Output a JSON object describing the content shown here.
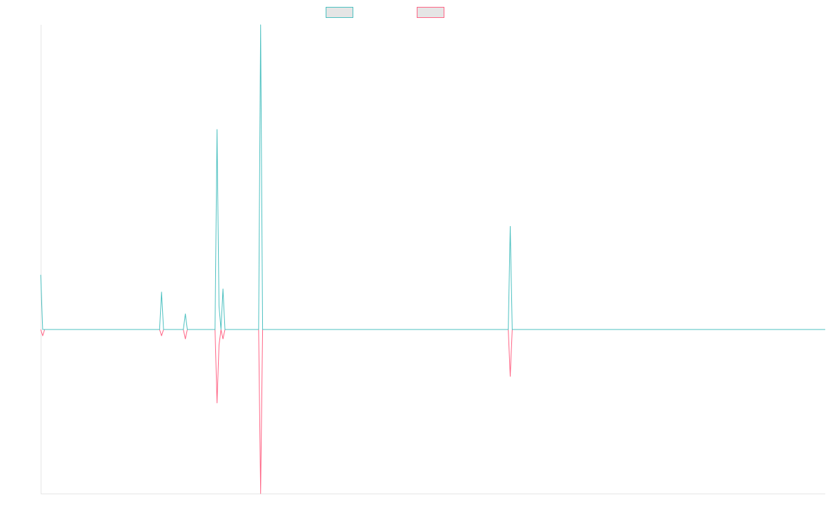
{
  "chart_data": {
    "type": "line",
    "title": "",
    "xlabel": "",
    "ylabel": "",
    "grid": false,
    "legend_position": "top-center",
    "colors": {
      "positive": "#4bc0c0",
      "negative": "#ff6384",
      "axis": "#e5e5e5",
      "legend_fill": "#e5e5e5"
    },
    "x_count": 397,
    "ylim": [
      -105,
      195
    ],
    "series": [
      {
        "color": "#4bc0c0",
        "fill": "#e5e5e5",
        "spikes": [
          [
            0,
            35
          ],
          [
            1,
            0
          ],
          [
            60,
            0
          ],
          [
            61,
            24
          ],
          [
            62,
            0
          ],
          [
            72,
            0
          ],
          [
            73,
            10
          ],
          [
            74,
            0
          ],
          [
            88,
            0
          ],
          [
            89,
            128
          ],
          [
            90,
            15
          ],
          [
            91,
            0
          ],
          [
            92,
            26
          ],
          [
            93,
            0
          ],
          [
            110,
            0
          ],
          [
            111,
            195
          ],
          [
            112,
            0
          ],
          [
            236,
            0
          ],
          [
            237,
            66
          ],
          [
            238,
            0
          ],
          [
            396,
            0
          ]
        ]
      },
      {
        "color": "#ff6384",
        "fill": "#e5e5e5",
        "spikes": [
          [
            0,
            0
          ],
          [
            1,
            -4
          ],
          [
            2,
            0
          ],
          [
            60,
            0
          ],
          [
            61,
            -4
          ],
          [
            62,
            0
          ],
          [
            72,
            0
          ],
          [
            73,
            -6
          ],
          [
            74,
            0
          ],
          [
            88,
            0
          ],
          [
            89,
            -47
          ],
          [
            90,
            -10
          ],
          [
            91,
            0
          ],
          [
            92,
            -6
          ],
          [
            93,
            0
          ],
          [
            110,
            0
          ],
          [
            111,
            -105
          ],
          [
            112,
            0
          ],
          [
            236,
            0
          ],
          [
            237,
            -30
          ],
          [
            238,
            0
          ],
          [
            396,
            0
          ]
        ]
      }
    ]
  }
}
